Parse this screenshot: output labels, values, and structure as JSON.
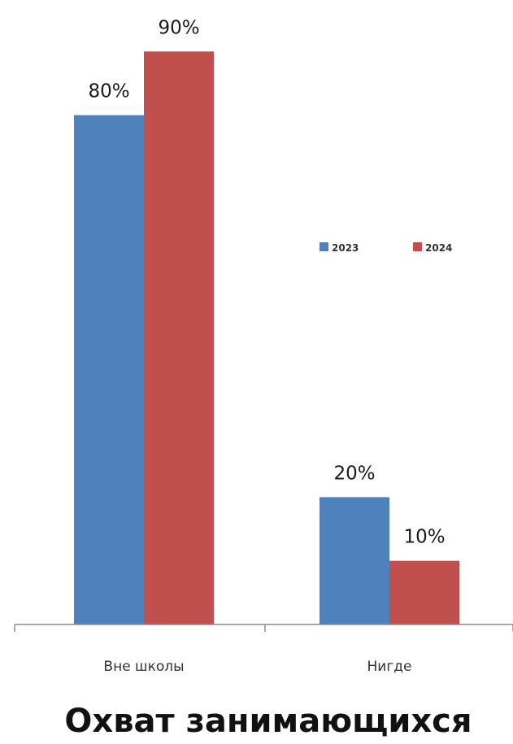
{
  "chart_data": {
    "type": "bar",
    "title": "Охват занимающихся",
    "categories": [
      "Вне школы",
      "Нигде"
    ],
    "series": [
      {
        "name": "2023",
        "color": "#4F81BD",
        "values": [
          80,
          20
        ],
        "labels": [
          "80%",
          "20%"
        ]
      },
      {
        "name": "2024",
        "color": "#C0504D",
        "values": [
          90,
          10
        ],
        "labels": [
          "90%",
          "10%"
        ]
      }
    ],
    "ylim": [
      0,
      100
    ],
    "grid": false,
    "legend": "right"
  }
}
